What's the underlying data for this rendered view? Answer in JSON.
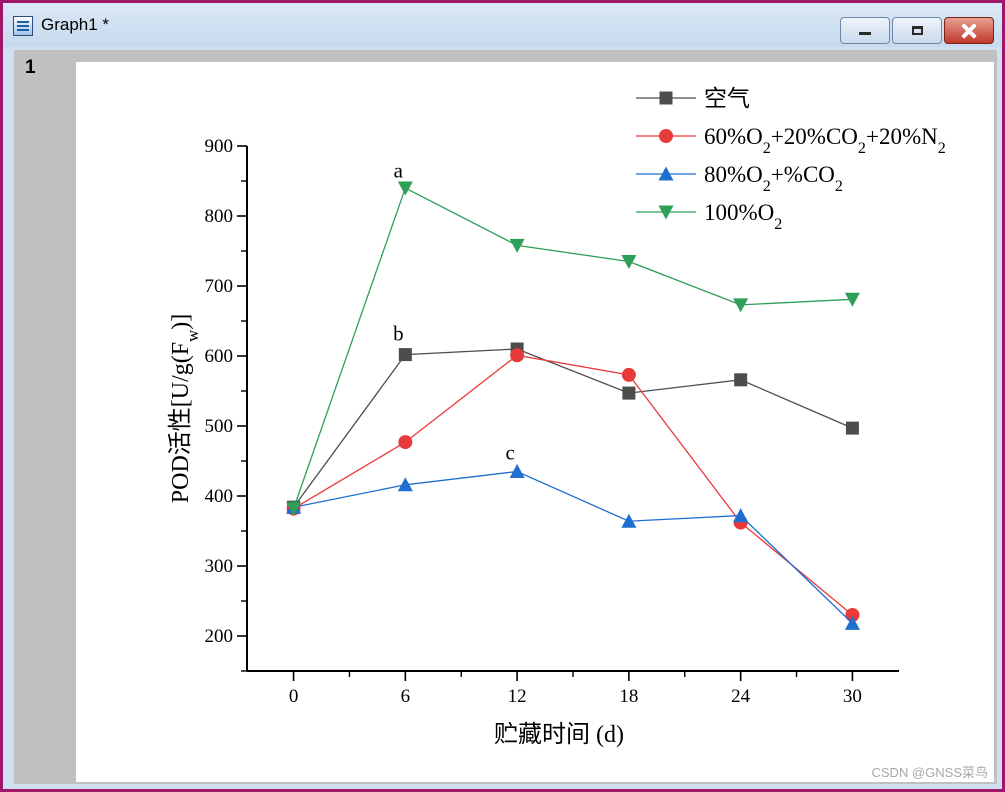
{
  "window": {
    "title": "Graph1 *",
    "layer_number": "1"
  },
  "chart_data": {
    "type": "line",
    "title": "",
    "xlabel": "贮藏时间 (d)",
    "ylabel": {
      "prefix": "POD活性[U/g(F",
      "sub": "w",
      "suffix": ")]"
    },
    "x": [
      0,
      6,
      12,
      18,
      24,
      30
    ],
    "xlim": [
      -2.5,
      32.5
    ],
    "ylim": [
      150,
      900
    ],
    "xticks": [
      0,
      6,
      12,
      18,
      24,
      30
    ],
    "yticks": [
      200,
      300,
      400,
      500,
      600,
      700,
      800,
      900
    ],
    "grid": false,
    "legend_position": "top-right",
    "series": [
      {
        "key": "air",
        "name": [
          {
            "t": "空气"
          }
        ],
        "values": [
          384,
          602,
          610,
          547,
          566,
          497
        ],
        "color": "#4d4d4d",
        "marker": "square"
      },
      {
        "key": "o2-60",
        "name": [
          {
            "t": "60%O"
          },
          {
            "t": "2",
            "sub": true
          },
          {
            "t": "+20%CO"
          },
          {
            "t": "2",
            "sub": true
          },
          {
            "t": "+20%N"
          },
          {
            "t": "2",
            "sub": true
          }
        ],
        "values": [
          382,
          477,
          601,
          573,
          362,
          230
        ],
        "color": "#e83a3a",
        "marker": "circle"
      },
      {
        "key": "o2-80",
        "name": [
          {
            "t": "80%O"
          },
          {
            "t": "2",
            "sub": true
          },
          {
            "t": "+%CO"
          },
          {
            "t": "2",
            "sub": true
          }
        ],
        "values": [
          384,
          416,
          435,
          364,
          372,
          218
        ],
        "color": "#1f6fd1",
        "marker": "triangle-up"
      },
      {
        "key": "o2-100",
        "name": [
          {
            "t": "100%O"
          },
          {
            "t": "2",
            "sub": true
          }
        ],
        "values": [
          382,
          840,
          758,
          735,
          673,
          681
        ],
        "color": "#2e9f58",
        "marker": "triangle-down"
      }
    ],
    "annotations": [
      {
        "text": "a",
        "x": 6,
        "y": 855
      },
      {
        "text": "b",
        "x": 6,
        "y": 622
      },
      {
        "text": "c",
        "x": 12,
        "y": 452
      }
    ]
  },
  "watermark": "CSDN @GNSS菜鸟"
}
